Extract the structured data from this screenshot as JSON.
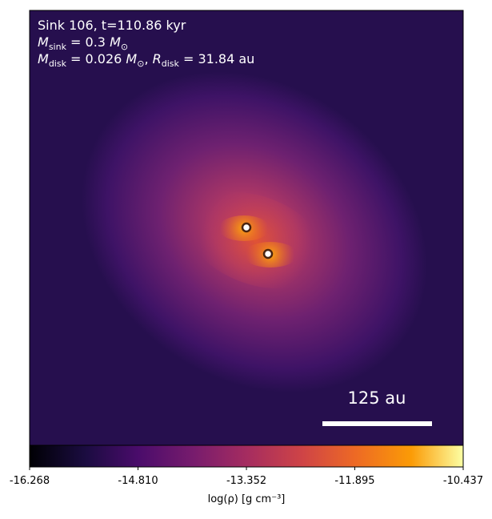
{
  "chart_data": {
    "type": "image",
    "annotations": [
      [
        {
          "text": "Sink 106, t=110.86 kyr"
        }
      ],
      [
        {
          "text": "M"
        },
        {
          "text": "sink",
          "sub": true
        },
        {
          "text": " = 0.3 "
        },
        {
          "text": "M"
        },
        {
          "text": "⊙",
          "sub": true
        }
      ],
      [
        {
          "text": "M"
        },
        {
          "text": "disk",
          "sub": true
        },
        {
          "text": " = 0.026 "
        },
        {
          "text": "M"
        },
        {
          "text": "⊙",
          "sub": true
        },
        {
          "text": ", "
        },
        {
          "text": "R"
        },
        {
          "text": "disk",
          "sub": true
        },
        {
          "text": " = 31.84 au"
        }
      ]
    ],
    "scale_bar_label": "125 au",
    "colorbar": {
      "label": "log(ρ) [g cm⁻³]",
      "colormap": "inferno",
      "lim": [
        -16.268,
        -10.437
      ],
      "ticks": [
        -16.268,
        {
          "value": -14.81,
          "label": "-14.810"
        },
        -13.352,
        -11.895,
        -10.437
      ]
    }
  }
}
